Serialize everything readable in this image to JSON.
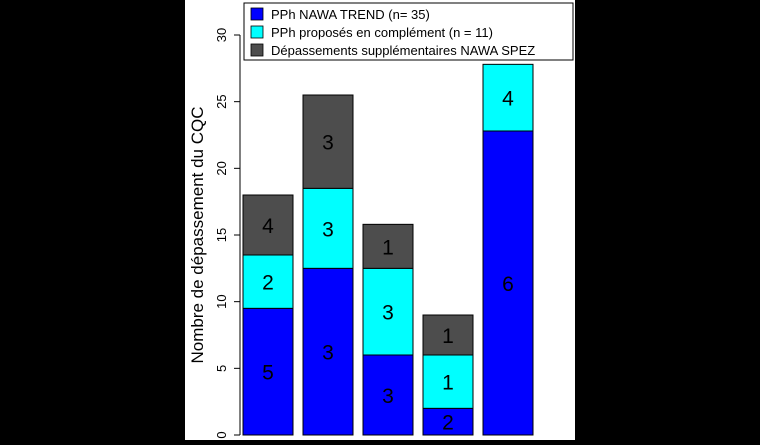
{
  "chart_data": {
    "type": "bar",
    "stacked": true,
    "ylabel": "Nombre de dépassement du CQC",
    "ylim": [
      0,
      30
    ],
    "yticks": [
      0,
      5,
      10,
      15,
      20,
      25,
      30
    ],
    "categories": [
      "",
      "",
      "",
      "",
      ""
    ],
    "legend_position": "top",
    "series": [
      {
        "name": "PPh NAWA TREND (n= 35)",
        "color": "#0000FF",
        "values": [
          9.5,
          12.5,
          6,
          2,
          22.8
        ],
        "labels": [
          "5",
          "3",
          "3",
          "2",
          "6"
        ]
      },
      {
        "name": "PPh proposés en complément (n = 11)",
        "color": "#00FFFF",
        "values": [
          4,
          6,
          6.5,
          4,
          5
        ],
        "labels": [
          "2",
          "3",
          "3",
          "1",
          "4"
        ]
      },
      {
        "name": "Dépassements supplémentaires NAWA SPEZ",
        "color": "#4D4D4D",
        "values": [
          4.5,
          7,
          3.3,
          3,
          0
        ],
        "labels": [
          "4",
          "3",
          "1",
          "1",
          ""
        ]
      }
    ]
  }
}
